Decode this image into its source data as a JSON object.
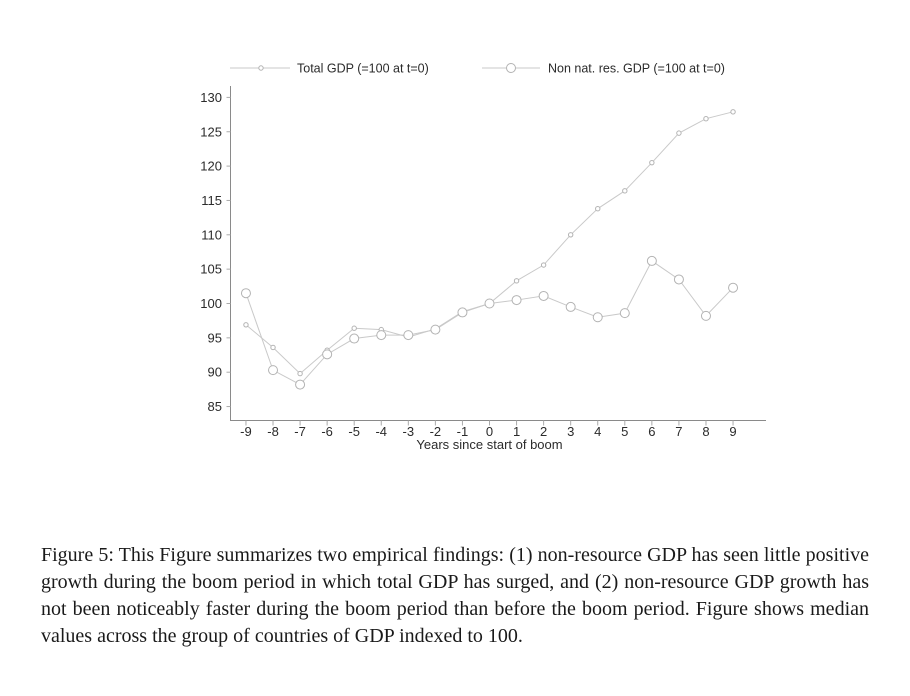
{
  "figure": {
    "caption": "Figure 5: This Figure summarizes two empirical findings: (1) non-resource GDP has seen little positive growth during the boom period in which total GDP has surged, and (2) non-resource GDP growth has not been noticeably faster during the boom period than before the boom period.  Figure shows median values across the group of countries of GDP indexed to 100."
  },
  "chart_data": {
    "type": "line",
    "title": "",
    "xlabel": "Years since start of boom",
    "ylabel": "",
    "x": [
      -9,
      -8,
      -7,
      -6,
      -5,
      -4,
      -3,
      -2,
      -1,
      0,
      1,
      2,
      3,
      4,
      5,
      6,
      7,
      8,
      9
    ],
    "series": [
      {
        "name": "Total GDP (=100 at t=0)",
        "marker": "small-circle",
        "values": [
          96.9,
          93.6,
          89.8,
          93.2,
          96.4,
          96.2,
          95.1,
          96.3,
          98.8,
          100.0,
          103.3,
          105.6,
          110.0,
          113.8,
          116.4,
          120.5,
          124.8,
          126.9,
          127.9
        ]
      },
      {
        "name": "Non nat. res. GDP (=100 at t=0)",
        "marker": "open-circle",
        "values": [
          101.5,
          90.3,
          88.2,
          92.6,
          94.9,
          95.4,
          95.4,
          96.2,
          98.7,
          100.0,
          100.5,
          101.1,
          99.5,
          98.0,
          98.6,
          106.2,
          103.5,
          98.2,
          102.3
        ]
      }
    ],
    "ylim": [
      85,
      130
    ],
    "yticks": [
      130,
      125,
      120,
      115,
      110,
      105,
      100,
      95,
      90,
      85
    ],
    "xticks": [
      -9,
      -8,
      -7,
      -6,
      -5,
      -4,
      -3,
      -2,
      -1,
      0,
      1,
      2,
      3,
      4,
      5,
      6,
      7,
      8,
      9
    ],
    "grid": false,
    "legend_position": "top",
    "colors": {
      "line": "#c9c9c9",
      "marker_stroke": "#b3b3b3",
      "axis": "#8a8a8a",
      "tick": "#aaaaaa",
      "text": "#2b2b2b"
    }
  }
}
